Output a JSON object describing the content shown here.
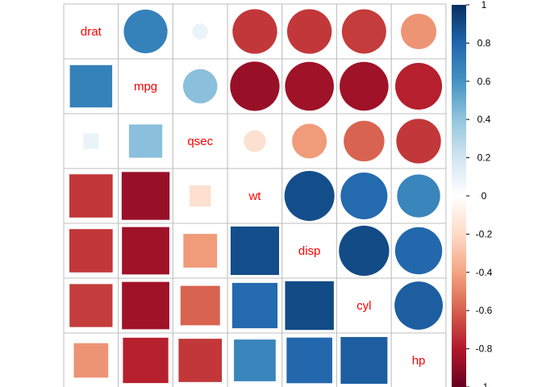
{
  "chart_data": {
    "type": "heatmap",
    "variables": [
      "drat",
      "mpg",
      "qsec",
      "wt",
      "disp",
      "cyl",
      "hp"
    ],
    "correlation": [
      [
        1.0,
        0.68,
        0.09,
        -0.71,
        -0.71,
        -0.7,
        -0.45
      ],
      [
        0.68,
        1.0,
        0.42,
        -0.87,
        -0.85,
        -0.85,
        -0.78
      ],
      [
        0.09,
        0.42,
        1.0,
        -0.17,
        -0.43,
        -0.59,
        -0.71
      ],
      [
        -0.71,
        -0.87,
        -0.17,
        1.0,
        0.89,
        0.78,
        0.66
      ],
      [
        -0.71,
        -0.85,
        -0.43,
        0.89,
        1.0,
        0.9,
        0.79
      ],
      [
        -0.7,
        -0.85,
        -0.59,
        0.78,
        0.9,
        1.0,
        0.83
      ],
      [
        -0.45,
        -0.78,
        -0.71,
        0.66,
        0.79,
        0.83,
        1.0
      ]
    ],
    "lower_shape": "square",
    "upper_shape": "circle",
    "diagonal": "labels",
    "label_color": "#ff0000",
    "color_scale": {
      "range": [
        -1,
        1
      ],
      "stops": [
        "#67001F",
        "#B2182B",
        "#D6604D",
        "#F4A582",
        "#FDDBC7",
        "#FFFFFF",
        "#D1E5F0",
        "#92C5DE",
        "#4393C3",
        "#2166AC",
        "#053061"
      ],
      "tick_labels": [
        "1",
        "0.8",
        "0.6",
        "0.4",
        "0.2",
        "0",
        "-0.2",
        "-0.4",
        "-0.6",
        "-0.8",
        "-1"
      ],
      "position": "right"
    },
    "grid": true
  }
}
